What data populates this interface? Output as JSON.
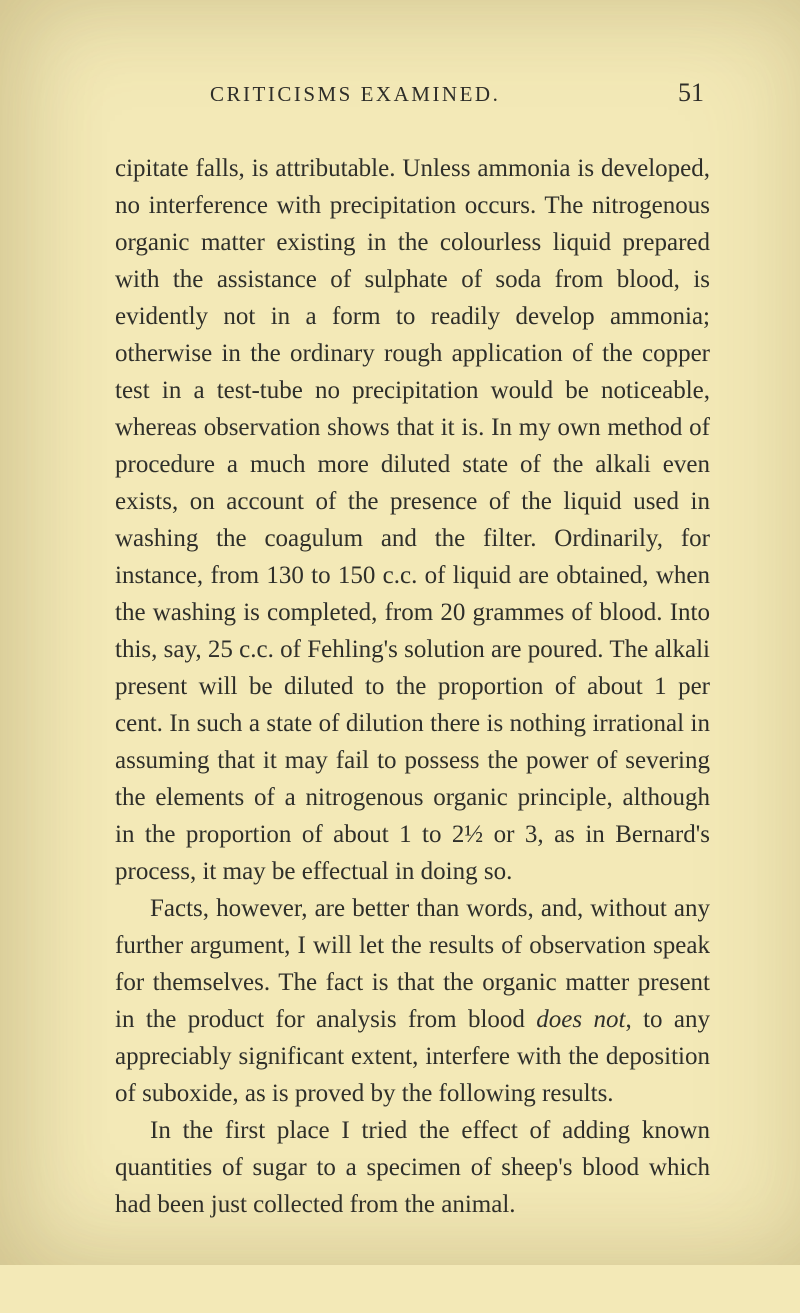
{
  "header": {
    "running_title": "CRITICISMS EXAMINED.",
    "page_number": "51"
  },
  "paragraphs": {
    "p1": "cipitate falls, is attributable. Unless ammonia is developed, no interference with precipitation occurs. The nitrogenous organic matter existing in the colourless liquid prepared with the assistance of sulphate of soda from blood, is evidently not in a form to readily develop ammonia; otherwise in the ordinary rough application of the copper test in a test-tube no precipitation would be noticeable, whereas observation shows that it is. In my own method of procedure a much more diluted state of the alkali even exists, on account of the presence of the liquid used in washing the coagulum and the filter. Ordinarily, for instance, from 130 to 150 c.c. of liquid are obtained, when the washing is com­pleted, from 20 grammes of blood. Into this, say, 25 c.c. of Fehling's solution are poured. The alkali present will be diluted to the proportion of about 1 per cent. In such a state of dilution there is nothing irrational in assuming that it may fail to possess the power of severing the elements of a nitrogenous organic principle, although in the proportion of about 1 to 2½ or 3, as in Bernard's process, it may be effectual in doing so.",
    "p2": "Facts, however, are better than words, and, with­out any further argument, I will let the results of observation speak for themselves. The fact is that the organic matter present in the product for analysis from blood ",
    "p2_em": "does not",
    "p2_tail": ", to any appreciably significant extent, interfere with the deposition of suboxide, as is proved by the following results.",
    "p3": "In the first place I tried the effect of adding known quantities of sugar to a specimen of sheep's blood which had been just collected from the animal."
  }
}
